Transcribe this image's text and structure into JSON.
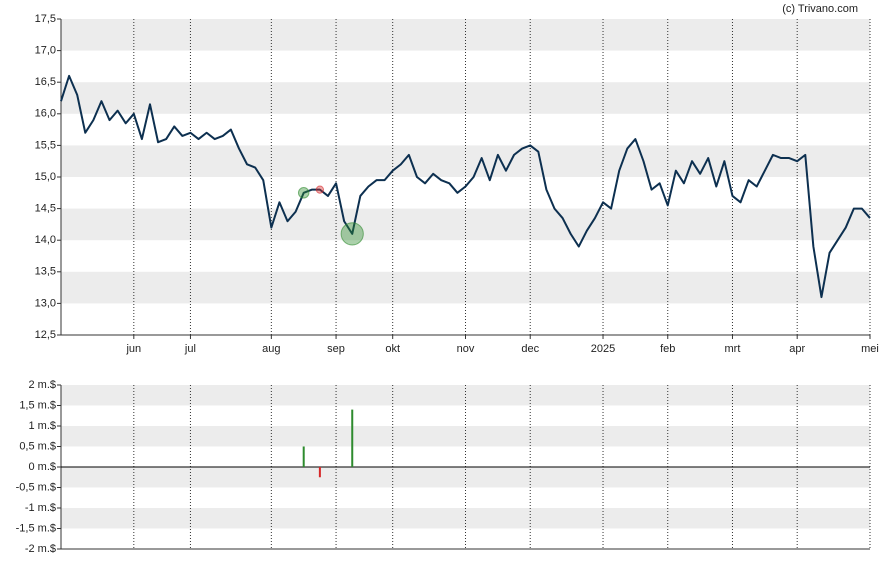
{
  "copyright": "(c) Trivano.com",
  "chart_data": [
    {
      "type": "line",
      "color": "#0d3050",
      "categories": [
        null,
        null,
        null,
        null,
        null,
        null,
        null,
        null,
        null,
        "jun",
        null,
        null,
        null,
        null,
        null,
        null,
        "jul",
        null,
        null,
        null,
        null,
        null,
        null,
        null,
        null,
        null,
        "aug",
        null,
        null,
        null,
        null,
        null,
        null,
        null,
        "sep",
        null,
        null,
        null,
        null,
        null,
        null,
        "okt",
        null,
        null,
        null,
        null,
        null,
        null,
        null,
        null,
        "nov",
        null,
        null,
        null,
        null,
        null,
        null,
        null,
        "dec",
        null,
        null,
        null,
        null,
        null,
        null,
        null,
        null,
        "2025",
        null,
        null,
        null,
        null,
        null,
        null,
        null,
        "feb",
        null,
        null,
        null,
        null,
        null,
        null,
        null,
        "mrt",
        null,
        null,
        null,
        null,
        null,
        null,
        null,
        "apr",
        null,
        null,
        null,
        null,
        null,
        null,
        null,
        null,
        "mei"
      ],
      "values": [
        16.2,
        16.6,
        16.3,
        15.7,
        15.9,
        16.2,
        15.9,
        16.05,
        15.85,
        16.0,
        15.6,
        16.15,
        15.55,
        15.6,
        15.8,
        15.65,
        15.7,
        15.6,
        15.7,
        15.6,
        15.65,
        15.75,
        15.45,
        15.2,
        15.15,
        14.95,
        14.2,
        14.6,
        14.3,
        14.45,
        14.75,
        14.8,
        14.8,
        14.7,
        14.9,
        14.3,
        14.1,
        14.7,
        14.85,
        14.95,
        14.95,
        15.1,
        15.2,
        15.35,
        15.0,
        14.9,
        15.05,
        14.95,
        14.9,
        14.75,
        14.85,
        15.0,
        15.3,
        14.95,
        15.35,
        15.1,
        15.35,
        15.45,
        15.5,
        15.4,
        14.8,
        14.5,
        14.35,
        14.1,
        13.9,
        14.15,
        14.35,
        14.6,
        14.5,
        15.1,
        15.45,
        15.6,
        15.25,
        14.8,
        14.9,
        14.55,
        15.1,
        14.9,
        15.25,
        15.05,
        15.3,
        14.85,
        15.25,
        14.7,
        14.6,
        14.95,
        14.85,
        15.1,
        15.35,
        15.3,
        15.3,
        15.25,
        15.35,
        13.9,
        13.1,
        13.8,
        14.0,
        14.2,
        14.5,
        14.5,
        14.35
      ],
      "ylim": [
        12.5,
        17.5
      ],
      "yticks": [
        {
          "value": 12.5,
          "label": "12,5"
        },
        {
          "value": 13,
          "label": "13,0"
        },
        {
          "value": 13.5,
          "label": "13,5"
        },
        {
          "value": 14,
          "label": "14,0"
        },
        {
          "value": 14.5,
          "label": "14,5"
        },
        {
          "value": 15,
          "label": "15,0"
        },
        {
          "value": 15.5,
          "label": "15,5"
        },
        {
          "value": 16,
          "label": "16,0"
        },
        {
          "value": 16.5,
          "label": "16,5"
        },
        {
          "value": 17,
          "label": "17,0"
        },
        {
          "value": 17.5,
          "label": "17,5"
        }
      ],
      "grid": "bands"
    },
    {
      "type": "bar",
      "colors": {
        "positive": "#2e8b2e",
        "negative": "#d62728"
      },
      "values": [
        null,
        null,
        null,
        null,
        null,
        null,
        null,
        null,
        null,
        null,
        null,
        null,
        null,
        null,
        null,
        null,
        null,
        null,
        null,
        null,
        null,
        null,
        null,
        null,
        null,
        null,
        null,
        null,
        null,
        null,
        0.5,
        null,
        -0.25,
        null,
        null,
        null,
        1.4,
        null,
        null,
        null,
        null,
        null,
        null,
        null,
        null,
        null,
        null,
        null,
        null,
        null,
        null,
        null,
        null,
        null,
        null,
        null,
        null,
        null,
        null,
        null,
        null,
        null,
        null,
        null,
        null,
        null,
        null,
        null,
        null,
        null,
        null,
        null,
        null,
        null,
        null,
        null,
        null,
        null,
        null,
        null,
        null,
        null,
        null,
        null,
        null,
        null,
        null,
        null,
        null,
        null,
        null,
        null,
        null,
        null,
        null,
        null,
        null,
        null,
        null,
        null,
        null
      ],
      "ylim": [
        -2,
        2
      ],
      "yticks": [
        {
          "value": -2,
          "label": "-2 m.$"
        },
        {
          "value": -1.5,
          "label": "-1,5 m.$"
        },
        {
          "value": -1,
          "label": "-1 m.$"
        },
        {
          "value": -0.5,
          "label": "-0,5 m.$"
        },
        {
          "value": 0,
          "label": "0 m.$"
        },
        {
          "value": 0.5,
          "label": "0,5 m.$"
        },
        {
          "value": 1,
          "label": "1 m.$"
        },
        {
          "value": 1.5,
          "label": "1,5 m.$"
        },
        {
          "value": 2,
          "label": "2 m.$"
        }
      ],
      "grid": "bands"
    }
  ]
}
